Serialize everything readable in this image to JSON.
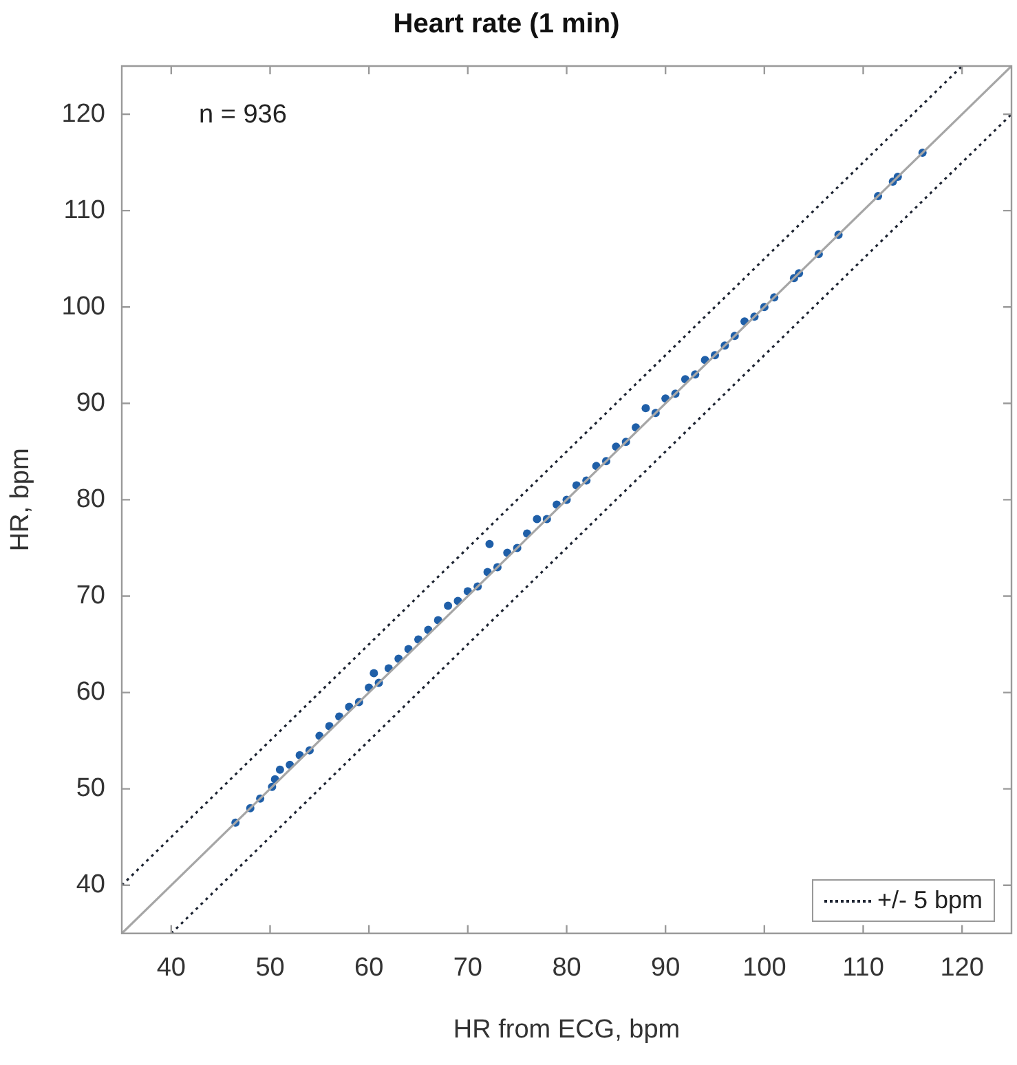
{
  "chart_data": {
    "type": "scatter",
    "title": "Heart rate (1 min)",
    "xlabel": "HR from ECG, bpm",
    "ylabel": "HR, bpm",
    "xlim": [
      35,
      125
    ],
    "ylim": [
      35,
      125
    ],
    "xticks": [
      40,
      50,
      60,
      70,
      80,
      90,
      100,
      110,
      120
    ],
    "yticks": [
      40,
      50,
      60,
      70,
      80,
      90,
      100,
      110,
      120
    ],
    "legend": "bottom right",
    "annotations": [
      "n = 936"
    ],
    "series": [
      {
        "type": "line",
        "color": "#a6a6a6",
        "line_style": "solid",
        "marker": "none",
        "x": [
          35,
          125
        ],
        "values": [
          35,
          125
        ]
      },
      {
        "type": "line",
        "name": "+/- 5 bpm",
        "color": "#1c2331",
        "line_style": "dotted",
        "marker": "none",
        "x": [
          35,
          120,
          null,
          40,
          125
        ],
        "values": [
          40,
          125,
          null,
          35,
          120
        ]
      },
      {
        "color": "#1f5fa8",
        "marker": "circle",
        "x": [
          46.5,
          48,
          49,
          50.2,
          50.5,
          51,
          52,
          53,
          54,
          55,
          56,
          57,
          58,
          59,
          60,
          60.5,
          61,
          62,
          63,
          64,
          65,
          66,
          67,
          68,
          69,
          70,
          71,
          72,
          72.2,
          73,
          74,
          75,
          76,
          77,
          78,
          79,
          80,
          81,
          82,
          83,
          84,
          85,
          86,
          87,
          88,
          89,
          90,
          91,
          92,
          93,
          94,
          95,
          96,
          97,
          98,
          99,
          100,
          101,
          103,
          103.5,
          105.5,
          107.5,
          111.5,
          113,
          113.5,
          116
        ],
        "values": [
          46.5,
          48,
          49,
          50.2,
          51,
          52,
          52.5,
          53.5,
          54,
          55.5,
          56.5,
          57.5,
          58.5,
          59,
          60.5,
          62,
          61,
          62.5,
          63.5,
          64.5,
          65.5,
          66.5,
          67.5,
          69,
          69.5,
          70.5,
          71,
          72.5,
          75.4,
          73,
          74.5,
          75,
          76.5,
          78,
          78,
          79.5,
          80,
          81.5,
          82,
          83.5,
          84,
          85.5,
          86,
          87.5,
          89.5,
          89,
          90.5,
          91,
          92.5,
          93,
          94.5,
          95,
          96,
          97,
          98.5,
          99,
          100,
          101,
          103,
          103.5,
          105.5,
          107.5,
          111.5,
          113,
          113.5,
          116
        ]
      }
    ]
  }
}
